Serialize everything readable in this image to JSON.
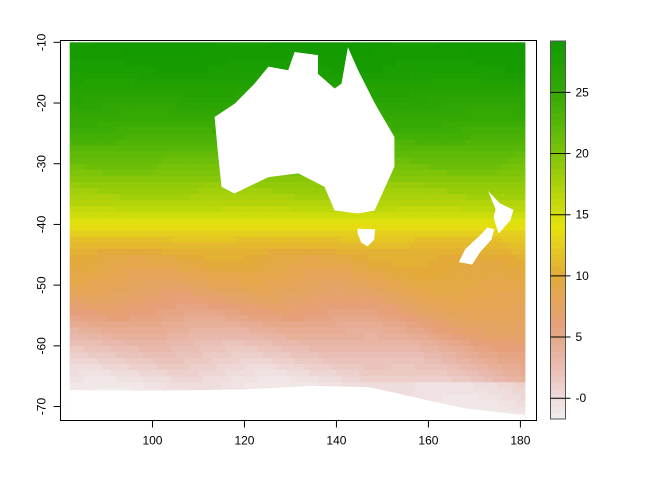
{
  "chart_data": {
    "type": "heatmap",
    "title": "",
    "xlabel": "",
    "ylabel": "",
    "xlim": [
      80,
      183.5
    ],
    "ylim": [
      -72.3,
      -9.7
    ],
    "data_extent": {
      "lon": [
        82,
        181
      ],
      "lat": [
        -72,
        -10
      ]
    },
    "x_ticks": [
      "100",
      "120",
      "140",
      "160",
      "180"
    ],
    "y_ticks": [
      "-10",
      "-20",
      "-30",
      "-40",
      "-50",
      "-60",
      "-70"
    ],
    "legend": {
      "range": [
        -1.7,
        29.2
      ],
      "ticks": [
        "-0",
        "5",
        "10",
        "15",
        "20",
        "25"
      ],
      "placement": "right"
    },
    "color_stops": [
      {
        "value": -2,
        "color": "#f2f2f2"
      },
      {
        "value": 0,
        "color": "#efdcdc"
      },
      {
        "value": 3,
        "color": "#e8b8ac"
      },
      {
        "value": 6,
        "color": "#e5a07a"
      },
      {
        "value": 10,
        "color": "#e3aa3a"
      },
      {
        "value": 14,
        "color": "#e6e30c"
      },
      {
        "value": 17,
        "color": "#b3d40a"
      },
      {
        "value": 21,
        "color": "#6cbf08"
      },
      {
        "value": 25,
        "color": "#34a904"
      },
      {
        "value": 29,
        "color": "#129a00"
      }
    ],
    "lat_profile": {
      "lat": [
        -10,
        -15,
        -20,
        -25,
        -30,
        -35,
        -38,
        -40,
        -42,
        -45,
        -50,
        -55,
        -60,
        -63,
        -66,
        -72
      ],
      "value": [
        29,
        28,
        26,
        24,
        21,
        18,
        16,
        14,
        12,
        10,
        8,
        5.5,
        2.5,
        1,
        -0.5,
        -1.7
      ]
    },
    "east_warming": {
      "from_lon": 140,
      "to_lon": 181,
      "max_added": 3.5,
      "from_lat": -42,
      "full_at_lat": -58
    },
    "land": [
      {
        "name": "Australia",
        "lonlat": [
          [
            113.5,
            -22.3
          ],
          [
            117.9,
            -20.1
          ],
          [
            122.2,
            -16.8
          ],
          [
            125.2,
            -14
          ],
          [
            129.5,
            -14.6
          ],
          [
            130.9,
            -11.6
          ],
          [
            136,
            -12.1
          ],
          [
            136,
            -15.2
          ],
          [
            139.6,
            -17.6
          ],
          [
            141.1,
            -16.8
          ],
          [
            142.5,
            -10.8
          ],
          [
            144.7,
            -14.6
          ],
          [
            148.3,
            -20
          ],
          [
            152.6,
            -25.6
          ],
          [
            152.6,
            -30.5
          ],
          [
            148.3,
            -37.7
          ],
          [
            144.7,
            -38.2
          ],
          [
            139.6,
            -37.7
          ],
          [
            137.4,
            -33.8
          ],
          [
            131.7,
            -31.6
          ],
          [
            125.2,
            -32.2
          ],
          [
            117.8,
            -34.9
          ],
          [
            115,
            -33.8
          ],
          [
            114.2,
            -28
          ],
          [
            113.5,
            -22.3
          ]
        ]
      },
      {
        "name": "Tasmania",
        "lonlat": [
          [
            144.6,
            -40.7
          ],
          [
            148.4,
            -40.8
          ],
          [
            148.2,
            -42.5
          ],
          [
            146.8,
            -43.6
          ],
          [
            145.4,
            -43
          ],
          [
            144.6,
            -41.5
          ]
        ]
      },
      {
        "name": "New Zealand North",
        "lonlat": [
          [
            173,
            -34.5
          ],
          [
            175.5,
            -36.5
          ],
          [
            178.5,
            -37.6
          ],
          [
            177.8,
            -39.3
          ],
          [
            175.3,
            -41.5
          ],
          [
            174.6,
            -40
          ],
          [
            174.2,
            -38.8
          ],
          [
            174.6,
            -37.5
          ]
        ]
      },
      {
        "name": "New Zealand South",
        "lonlat": [
          [
            174.3,
            -40.8
          ],
          [
            173.7,
            -42.5
          ],
          [
            171.3,
            -44.5
          ],
          [
            169.5,
            -46.6
          ],
          [
            166.6,
            -46.2
          ],
          [
            168,
            -44.1
          ],
          [
            171.5,
            -41.6
          ],
          [
            172.8,
            -40.5
          ]
        ]
      },
      {
        "name": "Antarctica",
        "lonlat": [
          [
            82,
            -67.3
          ],
          [
            100,
            -67.4
          ],
          [
            120,
            -67.2
          ],
          [
            135,
            -66.6
          ],
          [
            147,
            -66.8
          ],
          [
            152,
            -67.6
          ],
          [
            160,
            -69
          ],
          [
            168,
            -70.3
          ],
          [
            176,
            -71
          ],
          [
            181,
            -71.4
          ],
          [
            181,
            -72.3
          ],
          [
            82,
            -72.3
          ]
        ]
      }
    ]
  }
}
